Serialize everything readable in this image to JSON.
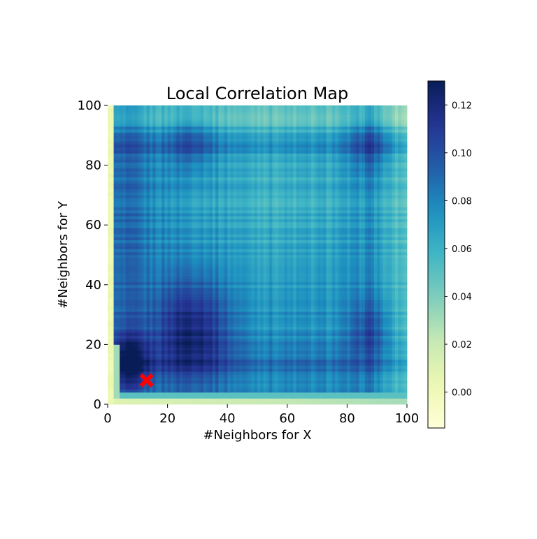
{
  "chart_data": {
    "type": "heatmap",
    "title": "Local Correlation Map",
    "xlabel": "#Neighbors for X",
    "ylabel": "#Neighbors for Y",
    "xlim": [
      0,
      100
    ],
    "ylim": [
      0,
      100
    ],
    "xticks": [
      0,
      20,
      40,
      60,
      80,
      100
    ],
    "yticks": [
      0,
      20,
      40,
      60,
      80,
      100
    ],
    "colormap": "YlGnBu",
    "colorbar": {
      "range": [
        -0.015,
        0.13
      ],
      "ticks": [
        0.0,
        0.02,
        0.04,
        0.06,
        0.08,
        0.1,
        0.12
      ],
      "tick_labels": [
        "0.00",
        "0.02",
        "0.04",
        "0.06",
        "0.08",
        "0.10",
        "0.12"
      ]
    },
    "regions": {
      "background_level": 0.078,
      "edge_level_left_bottom": 0.0,
      "edge_level_top_right": 0.05,
      "hotspots": [
        {
          "x": 28,
          "y": 24,
          "value": 0.125
        },
        {
          "x": 7,
          "y": 14,
          "value": 0.118
        },
        {
          "x": 88,
          "y": 25,
          "value": 0.1
        },
        {
          "x": 88,
          "y": 87,
          "value": 0.1
        },
        {
          "x": 28,
          "y": 88,
          "value": 0.1
        }
      ]
    },
    "marker": {
      "x": 13,
      "y": 8,
      "symbol": "X",
      "color": "#ff0000"
    }
  }
}
